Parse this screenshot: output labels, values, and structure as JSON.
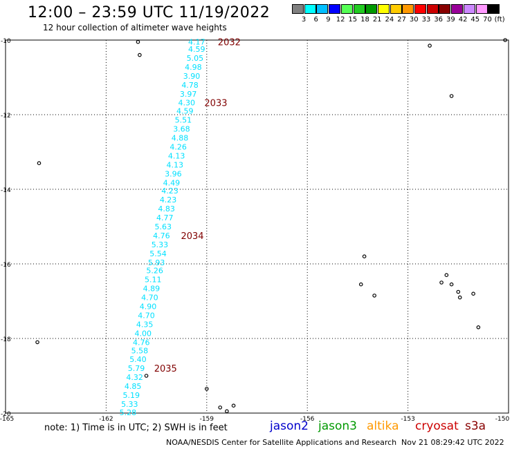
{
  "header": {
    "title": "12:00 – 23:59 UTC 11/19/2022",
    "subtitle": "12 hour collection of altimeter wave heights"
  },
  "colorbar": {
    "boxes": [
      "#808080",
      "#00ffff",
      "#00bfff",
      "#0000ff",
      "#55ff55",
      "#22cc22",
      "#009900",
      "#ffff00",
      "#ffcc00",
      "#ff9900",
      "#ff0000",
      "#cc0000",
      "#880000",
      "#990099",
      "#cc88ff",
      "#ff99ff",
      "#000000"
    ],
    "labels": [
      "3",
      "6",
      "9",
      "12",
      "15",
      "18",
      "21",
      "24",
      "27",
      "30",
      "33",
      "36",
      "39",
      "42",
      "45",
      "70",
      "(ft)"
    ]
  },
  "map": {
    "lon_range": [
      -165,
      -150
    ],
    "lat_range": [
      -20,
      -10
    ],
    "x_ticks": [
      "-165",
      "-162",
      "-159",
      "-156",
      "-153",
      "-150"
    ],
    "y_ticks": [
      "-10",
      "-12",
      "-14",
      "-16",
      "-18",
      "-20"
    ],
    "track_color": "#00e0ff",
    "time_color": "#800000",
    "wave_heights": [
      {
        "lon": -159.3,
        "lat": -10.05,
        "v": "4.17"
      },
      {
        "lon": -159.3,
        "lat": -10.24,
        "v": "4.59"
      },
      {
        "lon": -159.35,
        "lat": -10.48,
        "v": "5.05"
      },
      {
        "lon": -159.4,
        "lat": -10.72,
        "v": "4.98"
      },
      {
        "lon": -159.45,
        "lat": -10.96,
        "v": "3.90"
      },
      {
        "lon": -159.5,
        "lat": -11.2,
        "v": "4.78"
      },
      {
        "lon": -159.55,
        "lat": -11.44,
        "v": "3.97"
      },
      {
        "lon": -159.6,
        "lat": -11.68,
        "v": "4.30"
      },
      {
        "lon": -159.65,
        "lat": -11.9,
        "v": "4.59"
      },
      {
        "lon": -159.7,
        "lat": -12.14,
        "v": "5.51"
      },
      {
        "lon": -159.75,
        "lat": -12.38,
        "v": "3.68"
      },
      {
        "lon": -159.8,
        "lat": -12.62,
        "v": "4.88"
      },
      {
        "lon": -159.85,
        "lat": -12.86,
        "v": "4.26"
      },
      {
        "lon": -159.9,
        "lat": -13.1,
        "v": "4.13"
      },
      {
        "lon": -159.95,
        "lat": -13.34,
        "v": "4.13"
      },
      {
        "lon": -160.0,
        "lat": -13.58,
        "v": "3.96"
      },
      {
        "lon": -160.05,
        "lat": -13.82,
        "v": "4.49"
      },
      {
        "lon": -160.1,
        "lat": -14.04,
        "v": "4.23"
      },
      {
        "lon": -160.15,
        "lat": -14.28,
        "v": "4.23"
      },
      {
        "lon": -160.2,
        "lat": -14.52,
        "v": "4.83"
      },
      {
        "lon": -160.25,
        "lat": -14.76,
        "v": "4.77"
      },
      {
        "lon": -160.3,
        "lat": -15.0,
        "v": "5.63"
      },
      {
        "lon": -160.35,
        "lat": -15.24,
        "v": "4.76"
      },
      {
        "lon": -160.4,
        "lat": -15.48,
        "v": "5.33"
      },
      {
        "lon": -160.45,
        "lat": -15.72,
        "v": "5.54"
      },
      {
        "lon": -160.5,
        "lat": -15.96,
        "v": "5.93"
      },
      {
        "lon": -160.55,
        "lat": -16.18,
        "v": "5.26"
      },
      {
        "lon": -160.6,
        "lat": -16.42,
        "v": "5.11"
      },
      {
        "lon": -160.65,
        "lat": -16.66,
        "v": "4.89"
      },
      {
        "lon": -160.7,
        "lat": -16.9,
        "v": "4.70"
      },
      {
        "lon": -160.75,
        "lat": -17.14,
        "v": "4.90"
      },
      {
        "lon": -160.8,
        "lat": -17.38,
        "v": "4.70"
      },
      {
        "lon": -160.85,
        "lat": -17.62,
        "v": "4.35"
      },
      {
        "lon": -160.9,
        "lat": -17.86,
        "v": "4.00"
      },
      {
        "lon": -160.95,
        "lat": -18.1,
        "v": "4.76"
      },
      {
        "lon": -161.0,
        "lat": -18.32,
        "v": "5.58"
      },
      {
        "lon": -161.05,
        "lat": -18.56,
        "v": "5.40"
      },
      {
        "lon": -161.1,
        "lat": -18.8,
        "v": "5.79"
      },
      {
        "lon": -161.15,
        "lat": -19.04,
        "v": "4.32"
      },
      {
        "lon": -161.2,
        "lat": -19.28,
        "v": "4.85"
      },
      {
        "lon": -161.25,
        "lat": -19.52,
        "v": "5.19"
      },
      {
        "lon": -161.3,
        "lat": -19.76,
        "v": "5.33"
      },
      {
        "lon": -161.35,
        "lat": -19.98,
        "v": "5.28"
      }
    ],
    "time_labels": [
      {
        "lon": -159.0,
        "lat": -10.05,
        "t": "2032"
      },
      {
        "lon": -159.4,
        "lat": -11.68,
        "t": "2033"
      },
      {
        "lon": -160.1,
        "lat": -15.24,
        "t": "2034"
      },
      {
        "lon": -160.9,
        "lat": -18.8,
        "t": "2035"
      }
    ],
    "islands": [
      {
        "lon": -161.05,
        "lat": -10.05
      },
      {
        "lon": -161.0,
        "lat": -10.4
      },
      {
        "lon": -164.0,
        "lat": -13.3
      },
      {
        "lon": -164.05,
        "lat": -18.1
      },
      {
        "lon": -160.8,
        "lat": -19.0
      },
      {
        "lon": -159.0,
        "lat": -19.35
      },
      {
        "lon": -158.6,
        "lat": -19.85
      },
      {
        "lon": -158.4,
        "lat": -19.95
      },
      {
        "lon": -158.2,
        "lat": -19.8
      },
      {
        "lon": -154.3,
        "lat": -15.8
      },
      {
        "lon": -154.4,
        "lat": -16.55
      },
      {
        "lon": -154.0,
        "lat": -16.85
      },
      {
        "lon": -152.35,
        "lat": -10.15
      },
      {
        "lon": -151.7,
        "lat": -11.5
      },
      {
        "lon": -152.0,
        "lat": -16.5
      },
      {
        "lon": -151.85,
        "lat": -16.3
      },
      {
        "lon": -151.7,
        "lat": -16.55
      },
      {
        "lon": -151.5,
        "lat": -16.75
      },
      {
        "lon": -151.45,
        "lat": -16.9
      },
      {
        "lon": -151.05,
        "lat": -16.8
      },
      {
        "lon": -150.9,
        "lat": -17.7
      },
      {
        "lon": -150.1,
        "lat": -10.0
      }
    ]
  },
  "footer": {
    "note": "note:  1) Time is in UTC;  2) SWH is in feet",
    "satellites": [
      {
        "name": "jason2",
        "color": "#0000cc"
      },
      {
        "name": "jason3",
        "color": "#009900"
      },
      {
        "name": "altika",
        "color": "#ff9900"
      },
      {
        "name": "cryosat",
        "color": "#cc0000"
      },
      {
        "name": "s3a",
        "color": "#880000"
      }
    ],
    "credit": "NOAA/NESDIS Center for Satellite Applications and Research",
    "timestamp": "Nov 21 08:29:42 UTC 2022"
  }
}
